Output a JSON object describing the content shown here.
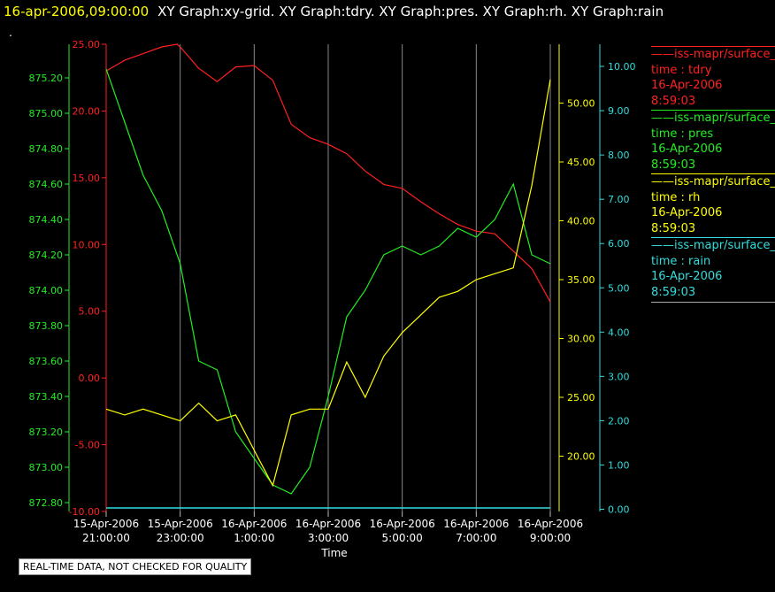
{
  "header": {
    "timestamp": "16-apr-2006,09:00:00",
    "graphs_text": "XY Graph:xy-grid.  XY Graph:tdry.  XY Graph:pres.  XY Graph:rh.  XY Graph:rain",
    "dot": "."
  },
  "legend": [
    {
      "name": "iss-mapr/surface_",
      "var": "time : tdry",
      "date": "16-Apr-2006",
      "time": "8:59:03",
      "color": "#ff2020"
    },
    {
      "name": "iss-mapr/surface_",
      "var": "time : pres",
      "date": "16-Apr-2006",
      "time": "8:59:03",
      "color": "#22ee22"
    },
    {
      "name": "iss-mapr/surface_",
      "var": "time : rh",
      "date": "16-Apr-2006",
      "time": "8:59:03",
      "color": "#ffff00"
    },
    {
      "name": "iss-mapr/surface_",
      "var": "time : rain",
      "date": "16-Apr-2006",
      "time": "8:59:03",
      "color": "#33dddd"
    }
  ],
  "footer": {
    "quality_note": "REAL-TIME DATA, NOT CHECKED FOR QUALITY"
  },
  "chart_data": {
    "type": "line",
    "xlabel": "Time",
    "x_ticks": [
      {
        "t": "2006-04-15T21:00:00",
        "l1": "15-Apr-2006",
        "l2": "21:00:00"
      },
      {
        "t": "2006-04-15T23:00:00",
        "l1": "15-Apr-2006",
        "l2": "23:00:00"
      },
      {
        "t": "2006-04-16T01:00:00",
        "l1": "16-Apr-2006",
        "l2": "1:00:00"
      },
      {
        "t": "2006-04-16T03:00:00",
        "l1": "16-Apr-2006",
        "l2": "3:00:00"
      },
      {
        "t": "2006-04-16T05:00:00",
        "l1": "16-Apr-2006",
        "l2": "5:00:00"
      },
      {
        "t": "2006-04-16T07:00:00",
        "l1": "16-Apr-2006",
        "l2": "7:00:00"
      },
      {
        "t": "2006-04-16T09:00:00",
        "l1": "16-Apr-2006",
        "l2": "9:00:00"
      }
    ],
    "xlim": [
      "2006-04-15T21:00:00",
      "2006-04-16T09:00:00"
    ],
    "grid": true,
    "axes": {
      "tdry": {
        "color": "#ff2020",
        "ylim": [
          -10,
          25
        ],
        "ticks": [
          "-10.00",
          "-5.00",
          "0.00",
          "5.00",
          "10.00",
          "15.00",
          "20.00",
          "25.00"
        ]
      },
      "pres": {
        "color": "#22ee22",
        "ylim": [
          872.75,
          875.39
        ],
        "ticks": [
          "872.80",
          "873.00",
          "873.20",
          "873.40",
          "873.60",
          "873.80",
          "874.00",
          "874.20",
          "874.40",
          "874.60",
          "874.80",
          "875.00",
          "875.20"
        ]
      },
      "rh": {
        "color": "#ffff00",
        "ylim": [
          15.3,
          55.0
        ],
        "ticks": [
          "20.00",
          "25.00",
          "30.00",
          "35.00",
          "40.00",
          "45.00",
          "50.00"
        ]
      },
      "rain": {
        "color": "#33dddd",
        "ylim": [
          -0.05,
          10.5
        ],
        "ticks": [
          "0.00",
          "1.00",
          "2.00",
          "3.00",
          "4.00",
          "5.00",
          "6.00",
          "7.00",
          "8.00",
          "9.00",
          "10.00"
        ]
      }
    },
    "series": [
      {
        "name": "time : tdry",
        "axis": "tdry",
        "color": "#ff2020",
        "x": [
          "2006-04-15T21:00:00",
          "2006-04-15T21:30:00",
          "2006-04-15T22:00:00",
          "2006-04-15T22:30:00",
          "2006-04-15T22:55:00",
          "2006-04-15T23:00:00",
          "2006-04-15T23:30:00",
          "2006-04-16T00:00:00",
          "2006-04-16T00:30:00",
          "2006-04-16T01:00:00",
          "2006-04-16T01:30:00",
          "2006-04-16T02:00:00",
          "2006-04-16T02:30:00",
          "2006-04-16T03:00:00",
          "2006-04-16T03:30:00",
          "2006-04-16T04:00:00",
          "2006-04-16T04:30:00",
          "2006-04-16T05:00:00",
          "2006-04-16T05:30:00",
          "2006-04-16T06:00:00",
          "2006-04-16T06:30:00",
          "2006-04-16T07:00:00",
          "2006-04-16T07:30:00",
          "2006-04-16T08:00:00",
          "2006-04-16T08:30:00",
          "2006-04-16T09:00:00"
        ],
        "y": [
          23.0,
          23.8,
          24.3,
          24.8,
          25.0,
          24.8,
          23.2,
          22.2,
          23.3,
          23.4,
          22.3,
          19.0,
          18.0,
          17.5,
          16.8,
          15.5,
          14.5,
          14.2,
          13.2,
          12.3,
          11.5,
          11.0,
          10.8,
          9.5,
          8.2,
          5.7
        ]
      },
      {
        "name": "time : pres",
        "axis": "pres",
        "color": "#22ee22",
        "x": [
          "2006-04-15T21:00:00",
          "2006-04-15T21:30:00",
          "2006-04-15T22:00:00",
          "2006-04-15T22:30:00",
          "2006-04-15T23:00:00",
          "2006-04-15T23:30:00",
          "2006-04-16T00:00:00",
          "2006-04-16T00:30:00",
          "2006-04-16T01:00:00",
          "2006-04-16T01:30:00",
          "2006-04-16T02:00:00",
          "2006-04-16T02:30:00",
          "2006-04-16T03:00:00",
          "2006-04-16T03:30:00",
          "2006-04-16T04:00:00",
          "2006-04-16T04:30:00",
          "2006-04-16T05:00:00",
          "2006-04-16T05:30:00",
          "2006-04-16T06:00:00",
          "2006-04-16T06:30:00",
          "2006-04-16T07:00:00",
          "2006-04-16T07:30:00",
          "2006-04-16T08:00:00",
          "2006-04-16T08:30:00",
          "2006-04-16T09:00:00"
        ],
        "y": [
          875.25,
          874.95,
          874.65,
          874.45,
          874.15,
          873.6,
          873.55,
          873.2,
          873.05,
          872.9,
          872.85,
          873.0,
          873.4,
          873.85,
          874.0,
          874.2,
          874.25,
          874.2,
          874.25,
          874.35,
          874.3,
          874.4,
          874.6,
          874.2,
          874.15
        ]
      },
      {
        "name": "time : rh",
        "axis": "rh",
        "color": "#ffff00",
        "x": [
          "2006-04-15T21:00:00",
          "2006-04-15T21:30:00",
          "2006-04-15T22:00:00",
          "2006-04-15T22:30:00",
          "2006-04-15T23:00:00",
          "2006-04-15T23:30:00",
          "2006-04-16T00:00:00",
          "2006-04-16T00:30:00",
          "2006-04-16T01:00:00",
          "2006-04-16T01:30:00",
          "2006-04-16T02:00:00",
          "2006-04-16T02:30:00",
          "2006-04-16T03:00:00",
          "2006-04-16T03:30:00",
          "2006-04-16T04:00:00",
          "2006-04-16T04:30:00",
          "2006-04-16T05:00:00",
          "2006-04-16T05:30:00",
          "2006-04-16T06:00:00",
          "2006-04-16T06:30:00",
          "2006-04-16T07:00:00",
          "2006-04-16T07:30:00",
          "2006-04-16T08:00:00",
          "2006-04-16T08:30:00",
          "2006-04-16T09:00:00"
        ],
        "y": [
          24.0,
          23.5,
          24.0,
          23.5,
          23.0,
          24.5,
          23.0,
          23.5,
          20.5,
          17.5,
          23.5,
          24.0,
          24.0,
          28.0,
          25.0,
          28.5,
          30.5,
          32.0,
          33.5,
          34.0,
          35.0,
          35.5,
          36.0,
          43.0,
          52.0
        ]
      },
      {
        "name": "time : rain",
        "axis": "rain",
        "color": "#33dddd",
        "x": [
          "2006-04-15T21:00:00",
          "2006-04-16T09:00:00"
        ],
        "y": [
          0.0,
          0.0
        ]
      }
    ]
  }
}
